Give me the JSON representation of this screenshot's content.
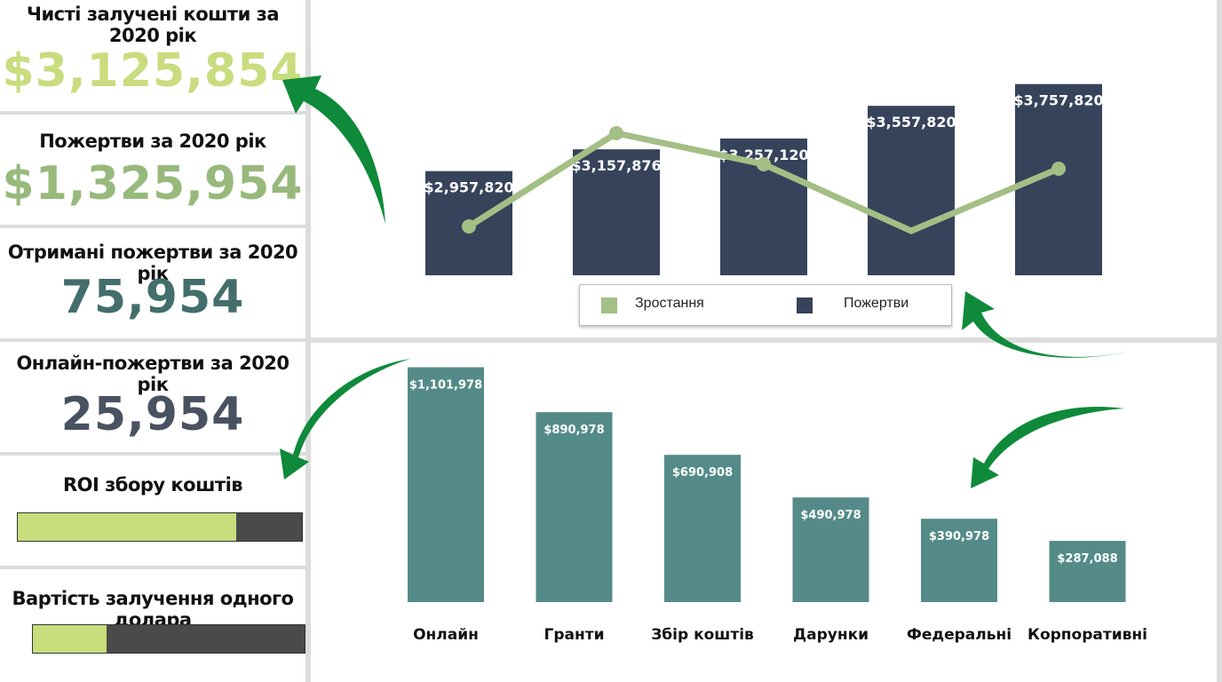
{
  "kpis": {
    "net_funds": {
      "label": "Чисті залучені кошти за 2020 рік",
      "value": "$3,125,854"
    },
    "donations": {
      "label": "Пожертви за 2020 рік",
      "value": "$1,325,954"
    },
    "received": {
      "label": "Отримані пожертви за 2020 рік",
      "value": "75,954"
    },
    "online": {
      "label": "Онлайн-пожертви за 2020 рік",
      "value": "25,954"
    },
    "roi": {
      "label": "ROI збору коштів",
      "progress_fraction": 0.77
    },
    "cost": {
      "label": "Вартість залучення одного долара",
      "progress_fraction": 0.27
    }
  },
  "colors": {
    "bar_dark": "#36435b",
    "bar_teal": "#548b88",
    "line_green": "#a3bf85",
    "kpi_light_green": "#c9dc7e",
    "kpi_green": "#98b97c",
    "kpi_teal": "#436e6b",
    "kpi_slate": "#495261",
    "arrow_green": "#0e8a3a",
    "progress_fill": "#c8dd7c",
    "progress_track": "#4a4a4a"
  },
  "chart_data": [
    {
      "type": "bar",
      "categories": [
        "",
        "",
        "",
        "",
        ""
      ],
      "series": [
        {
          "name": "Пожертви",
          "type": "bar",
          "values": [
            2957820,
            3157876,
            3257120,
            3557820,
            3757820
          ],
          "labels": [
            "$2,957,820",
            "$3,157,876",
            "$3,257,120",
            "$3,557,820",
            "$3,757,820"
          ]
        },
        {
          "name": "Зростання",
          "type": "line",
          "values": [
            0.2,
            0.62,
            0.48,
            0.18,
            0.46
          ]
        }
      ],
      "ylim": [
        2000000,
        4000000
      ],
      "legend": {
        "position": "bottom",
        "entries": [
          "Зростання",
          "Пожертви"
        ]
      },
      "grid": false
    },
    {
      "type": "bar",
      "categories": [
        "Онлайн",
        "Гранти",
        "Збір коштів",
        "Дарунки",
        "Федеральні",
        "Корпоративні"
      ],
      "values": [
        1101978,
        890978,
        690908,
        490978,
        390978,
        287088
      ],
      "labels": [
        "$1,101,978",
        "$890,978",
        "$690,908",
        "$490,978",
        "$390,978",
        "$287,088"
      ],
      "ylim": [
        0,
        1250000
      ],
      "grid": false
    }
  ],
  "icons": [
    "curved-arrow-icon"
  ]
}
